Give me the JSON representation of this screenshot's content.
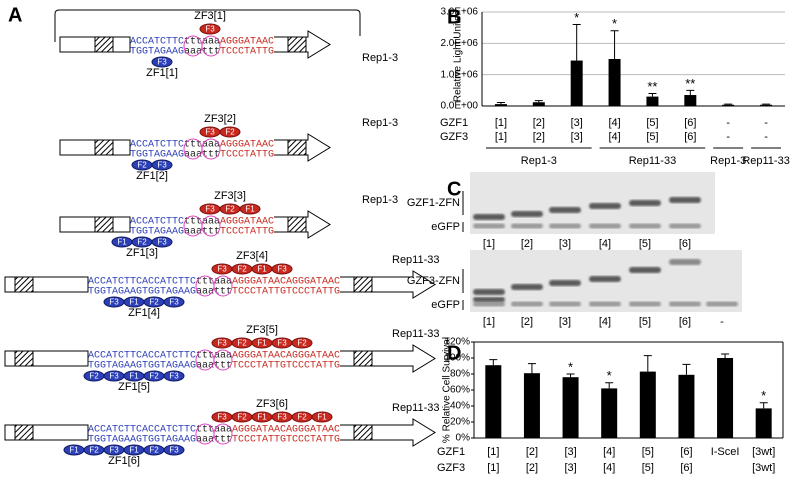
{
  "panel_labels": [
    "A",
    "B",
    "C",
    "D"
  ],
  "constructs": [
    {
      "zf3": "ZF3[1]",
      "zf1": "ZF1[1]",
      "rep": "Rep1-3",
      "top_blue": "ACCATCTTC",
      "top_mid": "tttaaa",
      "top_red": "AGGGATAAC",
      "bottom_blue": "TGGTAGAAG",
      "bottom_mid": "aaattt",
      "bottom_red": "TCCCTATTG",
      "zf3_fingers": [
        "F3"
      ],
      "zf1_fingers": [
        "F3"
      ]
    },
    {
      "zf3": "ZF3[2]",
      "zf1": "ZF1[2]",
      "rep": "Rep1-3",
      "top_blue": "ACCATCTTC",
      "top_mid": "tttaaa",
      "top_red": "AGGGATAAC",
      "bottom_blue": "TGGTAGAAG",
      "bottom_mid": "aaattt",
      "bottom_red": "TCCCTATTG",
      "zf3_fingers": [
        "F3",
        "F2"
      ],
      "zf1_fingers": [
        "F2",
        "F3"
      ]
    },
    {
      "zf3": "ZF3[3]",
      "zf1": "ZF1[3]",
      "rep": "Rep1-3",
      "top_blue": "ACCATCTTC",
      "top_mid": "tttaaa",
      "top_red": "AGGGATAAC",
      "bottom_blue": "TGGTAGAAG",
      "bottom_mid": "aaattt",
      "bottom_red": "TCCCTATTG",
      "zf3_fingers": [
        "F3",
        "F2",
        "F1"
      ],
      "zf1_fingers": [
        "F1",
        "F2",
        "F3"
      ]
    },
    {
      "zf3": "ZF3[4]",
      "zf1": "ZF1[4]",
      "rep": "Rep11-33",
      "top_blue": "ACCATCTTCACCATCTTC",
      "top_mid": "tttaaa",
      "top_red": "AGGGATAACAGGGATAAC",
      "bottom_blue": "TGGTAGAAGTGGTAGAAG",
      "bottom_mid": "aaattt",
      "bottom_red": "TCCCTATTGTCCCTATTG",
      "zf3_fingers": [
        "F3",
        "F2",
        "F1",
        "F3"
      ],
      "zf1_fingers": [
        "F3",
        "F1",
        "F2",
        "F3"
      ]
    },
    {
      "zf3": "ZF3[5]",
      "zf1": "ZF1[5]",
      "rep": "Rep11-33",
      "top_blue": "ACCATCTTCACCATCTTC",
      "top_mid": "tttaaa",
      "top_red": "AGGGATAACAGGGATAAC",
      "bottom_blue": "TGGTAGAAGTGGTAGAAG",
      "bottom_mid": "aaattt",
      "bottom_red": "TCCCTATTGTCCCTATTG",
      "zf3_fingers": [
        "F3",
        "F2",
        "F1",
        "F3",
        "F2"
      ],
      "zf1_fingers": [
        "F2",
        "F3",
        "F1",
        "F2",
        "F3"
      ]
    },
    {
      "zf3": "ZF3[6]",
      "zf1": "ZF1[6]",
      "rep": "Rep11-33",
      "top_blue": "ACCATCTTCACCATCTTC",
      "top_mid": "tttaaa",
      "top_red": "AGGGATAACAGGGATAAC",
      "bottom_blue": "TGGTAGAAGTGGTAGAAG",
      "bottom_mid": "aaattt",
      "bottom_red": "TCCCTATTGTCCCTATTG",
      "zf3_fingers": [
        "F3",
        "F2",
        "F1",
        "F3",
        "F2",
        "F1"
      ],
      "zf1_fingers": [
        "F1",
        "F2",
        "F3",
        "F1",
        "F2",
        "F3"
      ]
    }
  ],
  "chart_data": [
    {
      "type": "bar",
      "y_label": "Relative Light Units",
      "color": "#000000",
      "grid": true,
      "ylim": [
        0,
        3000000
      ],
      "yticks": [
        {
          "value": 0,
          "label": "0.0E+00"
        },
        {
          "value": 1000000,
          "label": "1.0E+06"
        },
        {
          "value": 2000000,
          "label": "2.0E+06"
        },
        {
          "value": 3000000,
          "label": "3.0E+06"
        }
      ],
      "values": [
        60000,
        120000,
        1450000,
        1500000,
        300000,
        350000,
        40000,
        40000
      ],
      "errors": [
        50000,
        50000,
        1150000,
        900000,
        100000,
        150000,
        20000,
        20000
      ],
      "annotations": [
        null,
        null,
        "*",
        "*",
        "**",
        "**",
        null,
        null
      ],
      "rows": [
        {
          "label": "GZF1",
          "categories": [
            "[1]",
            "[2]",
            "[3]",
            "[4]",
            "[5]",
            "[6]",
            "-",
            "-"
          ]
        },
        {
          "label": "GZF3",
          "categories": [
            "[1]",
            "[2]",
            "[3]",
            "[4]",
            "[5]",
            "[6]",
            "-",
            "-"
          ]
        }
      ],
      "groups": [
        "Rep1-3",
        "Rep11-33",
        "Rep1-3",
        "Rep11-33"
      ]
    },
    {
      "type": "bar",
      "y_label": "% Relative Cell Survival",
      "color": "#000000",
      "grid": false,
      "ylim": [
        0,
        120
      ],
      "yticks": [
        {
          "value": 0,
          "label": "0%"
        },
        {
          "value": 20,
          "label": "20%"
        },
        {
          "value": 40,
          "label": "40%"
        },
        {
          "value": 60,
          "label": "60%"
        },
        {
          "value": 80,
          "label": "80%"
        },
        {
          "value": 100,
          "label": "100%"
        },
        {
          "value": 120,
          "label": "120%"
        }
      ],
      "values": [
        91,
        81,
        76,
        62,
        83,
        79,
        100,
        37
      ],
      "errors": [
        7,
        12,
        4,
        7,
        20,
        13,
        5,
        7
      ],
      "annotations": [
        null,
        null,
        "*",
        "*",
        null,
        null,
        null,
        "*"
      ],
      "rows": [
        {
          "label": "GZF1",
          "categories": [
            "[1]",
            "[2]",
            "[3]",
            "[4]",
            "[5]",
            "[6]",
            "I-SceI",
            "[3wt]"
          ]
        },
        {
          "label": "GZF3",
          "categories": [
            "[1]",
            "[2]",
            "[3]",
            "[4]",
            "[5]",
            "[6]",
            null,
            "[3wt]"
          ]
        }
      ]
    }
  ],
  "gels": [
    {
      "label": "GZF1-ZFN",
      "control": "eGFP",
      "lanes": [
        "[1]",
        "[2]",
        "[3]",
        "[4]",
        "[5]",
        "[6]"
      ]
    },
    {
      "label": "GZF3-ZFN",
      "control": "eGFP",
      "lanes": [
        "[1]",
        "[2]",
        "[3]",
        "[4]",
        "[5]",
        "[6]",
        "-"
      ]
    }
  ]
}
